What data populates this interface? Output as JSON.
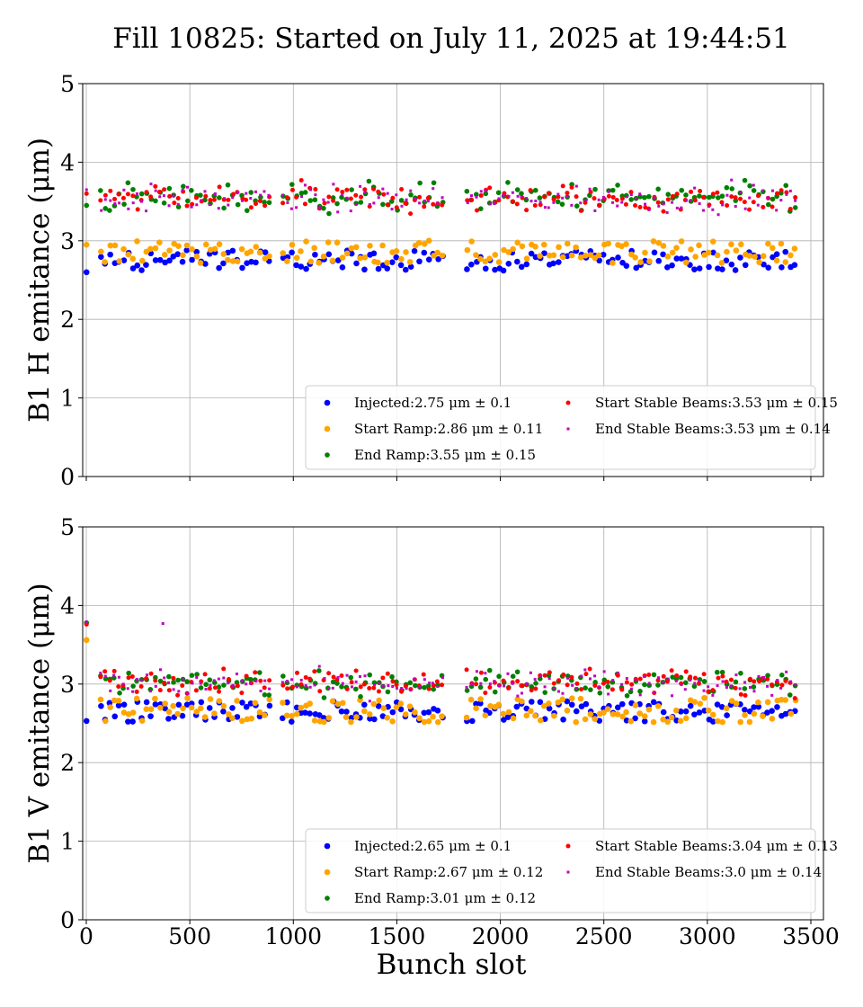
{
  "chart_data": {
    "type": "scatter",
    "title": "Fill 10825: Started on July 11, 2025 at 19:44:51",
    "xlabel": "Bunch slot",
    "xlim": [
      0,
      3500
    ],
    "xticks": [
      0,
      500,
      1000,
      1500,
      2000,
      2500,
      3000,
      3500
    ],
    "yticks": [
      0,
      1,
      2,
      3,
      4,
      5
    ],
    "grid": true,
    "colors": {
      "injected": "#0000ff",
      "start_ramp": "#ffa500",
      "end_ramp": "#008000",
      "start_stable": "#ff0000",
      "end_stable": "#bf00bf"
    },
    "panels": [
      {
        "ylabel": "B1 H emitance (μm)",
        "ylim": [
          0,
          5
        ],
        "legend_location": "lower-right",
        "series": [
          {
            "key": "injected",
            "name": "Injected:2.75 μm ± 0.1",
            "mean": 2.75,
            "std": 0.1
          },
          {
            "key": "start_ramp",
            "name": "Start Ramp:2.86 μm ± 0.11",
            "mean": 2.86,
            "std": 0.11
          },
          {
            "key": "end_ramp",
            "name": "End Ramp:3.55 μm ± 0.15",
            "mean": 3.55,
            "std": 0.15
          },
          {
            "key": "start_stable",
            "name": "Start Stable Beams:3.53 μm ± 0.15",
            "mean": 3.53,
            "std": 0.15
          },
          {
            "key": "end_stable",
            "name": "End Stable Beams:3.53 μm ± 0.14",
            "mean": 3.53,
            "std": 0.14
          }
        ],
        "first_bunch": {
          "injected": 2.6,
          "start_ramp": 2.95,
          "end_ramp": 3.45,
          "start_stable": 3.6,
          "end_stable": 3.65
        }
      },
      {
        "ylabel": "B1 V emitance (μm)",
        "ylim": [
          0,
          5
        ],
        "legend_location": "lower-right",
        "series": [
          {
            "key": "injected",
            "name": "Injected:2.65 μm ± 0.1",
            "mean": 2.65,
            "std": 0.1
          },
          {
            "key": "start_ramp",
            "name": "Start Ramp:2.67 μm ± 0.12",
            "mean": 2.67,
            "std": 0.12
          },
          {
            "key": "end_ramp",
            "name": "End Ramp:3.01 μm ± 0.12",
            "mean": 3.01,
            "std": 0.12
          },
          {
            "key": "start_stable",
            "name": "Start Stable Beams:3.04 μm ± 0.13",
            "mean": 3.04,
            "std": 0.13
          },
          {
            "key": "end_stable",
            "name": "End Stable Beams:3.0 μm ± 0.14",
            "mean": 3.0,
            "std": 0.14
          }
        ],
        "first_bunch": {
          "injected": 2.53,
          "start_ramp": 3.56,
          "end_ramp": 3.78,
          "start_stable": 3.76,
          "end_stable": 3.79
        },
        "outliers": [
          {
            "key": "end_stable",
            "x": 370,
            "y": 3.77
          }
        ]
      }
    ],
    "bunch_trains": [
      {
        "start": 70,
        "end": 890,
        "step": 22
      },
      {
        "start": 950,
        "end": 1730,
        "step": 22
      },
      {
        "start": 1840,
        "end": 3430,
        "step": 22
      }
    ]
  }
}
